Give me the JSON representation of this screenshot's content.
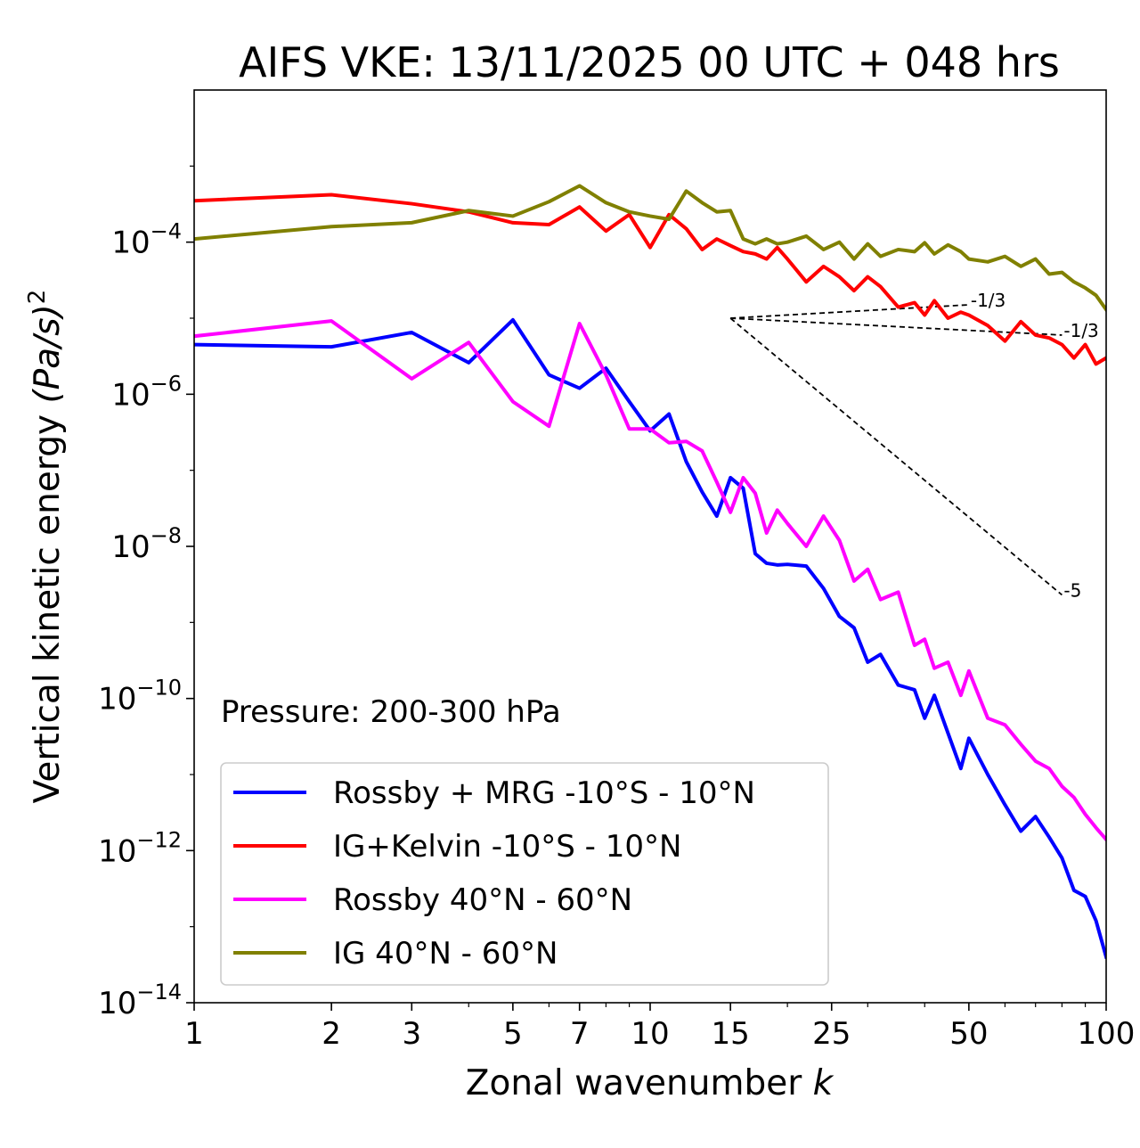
{
  "chart_data": {
    "type": "line",
    "title": "AIFS VKE: 13/11/2025 00 UTC + 048 hrs",
    "xlabel": "Zonal wavenumber",
    "xlabel_var": "k",
    "ylabel": "Vertical kinetic energy",
    "ylabel_units": "(Pa/s)",
    "ylabel_exp": "2",
    "xscale": "log",
    "yscale": "log",
    "xlim": [
      1,
      100
    ],
    "ylim": [
      1e-14,
      0.01
    ],
    "xticks": [
      {
        "value": 1,
        "label": "1"
      },
      {
        "value": 2,
        "label": "2"
      },
      {
        "value": 3,
        "label": "3"
      },
      {
        "value": 5,
        "label": "5"
      },
      {
        "value": 7,
        "label": "7"
      },
      {
        "value": 10,
        "label": "10"
      },
      {
        "value": 15,
        "label": "15"
      },
      {
        "value": 25,
        "label": "25"
      },
      {
        "value": 50,
        "label": "50"
      },
      {
        "value": 100,
        "label": "100"
      }
    ],
    "yticks": [
      {
        "value": 1e-14,
        "mant": "10",
        "exp": "−14"
      },
      {
        "value": 1e-12,
        "mant": "10",
        "exp": "−12"
      },
      {
        "value": 1e-10,
        "mant": "10",
        "exp": "−10"
      },
      {
        "value": 1e-08,
        "mant": "10",
        "exp": "−8"
      },
      {
        "value": 1e-06,
        "mant": "10",
        "exp": "−6"
      },
      {
        "value": 0.0001,
        "mant": "10",
        "exp": "−4"
      }
    ],
    "annotation": "Pressure: 200-300 hPa",
    "legend_position": "lower-left",
    "series": [
      {
        "name": "Rossby + MRG -10°S - 10°N",
        "color": "#0000ff",
        "x": [
          1,
          2,
          3,
          4,
          5,
          6,
          7,
          8,
          9,
          10,
          11,
          12,
          13,
          14,
          15,
          16,
          17,
          18,
          19,
          20,
          22,
          24,
          26,
          28,
          30,
          32,
          35,
          38,
          40,
          42,
          45,
          48,
          50,
          55,
          60,
          65,
          70,
          75,
          80,
          85,
          90,
          95,
          100
        ],
        "y": [
          4.5e-06,
          4.2e-06,
          6.5e-06,
          2.6e-06,
          9.5e-06,
          1.8e-06,
          1.2e-06,
          2.2e-06,
          8e-07,
          3.3e-07,
          5.5e-07,
          1.3e-07,
          5.2e-08,
          2.5e-08,
          8e-08,
          5.8e-08,
          8e-09,
          6e-09,
          5.7e-09,
          5.8e-09,
          5.5e-09,
          2.8e-09,
          1.2e-09,
          8.5e-10,
          3e-10,
          3.8e-10,
          1.5e-10,
          1.3e-10,
          5.5e-11,
          1.1e-10,
          3.5e-11,
          1.2e-11,
          3e-11,
          1e-11,
          4e-12,
          1.8e-12,
          2.8e-12,
          1.5e-12,
          8e-13,
          3e-13,
          2.5e-13,
          1.2e-13,
          4e-14
        ]
      },
      {
        "name": "IG+Kelvin -10°S - 10°N",
        "color": "#ff0000",
        "x": [
          1,
          2,
          3,
          4,
          5,
          6,
          7,
          8,
          9,
          10,
          11,
          12,
          13,
          14,
          15,
          16,
          17,
          18,
          19,
          20,
          22,
          24,
          26,
          28,
          30,
          32,
          35,
          38,
          40,
          42,
          45,
          48,
          50,
          55,
          60,
          65,
          70,
          75,
          80,
          85,
          90,
          95,
          100
        ],
        "y": [
          0.00035,
          0.00042,
          0.00032,
          0.00025,
          0.00018,
          0.00017,
          0.00029,
          0.00014,
          0.00023,
          8.5e-05,
          0.00023,
          0.00015,
          8e-05,
          0.00011,
          9e-05,
          7.5e-05,
          7e-05,
          6e-05,
          8.5e-05,
          6e-05,
          3e-05,
          4.8e-05,
          3.5e-05,
          2.3e-05,
          3.5e-05,
          2.6e-05,
          1.4e-05,
          1.6e-05,
          1.1e-05,
          1.7e-05,
          1e-05,
          1.2e-05,
          1.1e-05,
          8e-06,
          5e-06,
          9e-06,
          6e-06,
          5.5e-06,
          4.5e-06,
          3e-06,
          4.5e-06,
          2.5e-06,
          3e-06
        ]
      },
      {
        "name": "Rossby 40°N - 60°N",
        "color": "#ff00ff",
        "x": [
          1,
          2,
          3,
          4,
          5,
          6,
          7,
          8,
          9,
          10,
          11,
          12,
          13,
          14,
          15,
          16,
          17,
          18,
          19,
          20,
          22,
          24,
          26,
          28,
          30,
          32,
          35,
          38,
          40,
          42,
          45,
          48,
          50,
          55,
          60,
          65,
          70,
          75,
          80,
          85,
          90,
          95,
          100
        ],
        "y": [
          5.8e-06,
          9.2e-06,
          1.6e-06,
          4.8e-06,
          8e-07,
          3.8e-07,
          8.5e-06,
          1.8e-06,
          3.5e-07,
          3.5e-07,
          2.3e-07,
          2.4e-07,
          1.8e-07,
          7e-08,
          2.8e-08,
          8e-08,
          5e-08,
          1.5e-08,
          3e-08,
          2e-08,
          1e-08,
          2.5e-08,
          1.2e-08,
          3.5e-09,
          5e-09,
          2e-09,
          2.5e-09,
          5e-10,
          6e-10,
          2.5e-10,
          3e-10,
          1.1e-10,
          2.3e-10,
          5.5e-11,
          4.5e-11,
          2.5e-11,
          1.5e-11,
          1.2e-11,
          7e-12,
          5e-12,
          3e-12,
          2e-12,
          1.4e-12
        ]
      },
      {
        "name": "IG 40°N - 60°N",
        "color": "#808000",
        "x": [
          1,
          2,
          3,
          4,
          5,
          6,
          7,
          8,
          9,
          10,
          11,
          12,
          13,
          14,
          15,
          16,
          17,
          18,
          19,
          20,
          22,
          24,
          26,
          28,
          30,
          32,
          35,
          38,
          40,
          42,
          45,
          48,
          50,
          55,
          60,
          65,
          70,
          75,
          80,
          85,
          90,
          95,
          100
        ],
        "y": [
          0.00011,
          0.00016,
          0.00018,
          0.00026,
          0.00022,
          0.00034,
          0.00055,
          0.00033,
          0.00025,
          0.00022,
          0.0002,
          0.00047,
          0.00033,
          0.00025,
          0.00026,
          0.00011,
          9.5e-05,
          0.00011,
          9.5e-05,
          0.0001,
          0.00012,
          8e-05,
          0.0001,
          6e-05,
          9.5e-05,
          6.5e-05,
          8e-05,
          7.5e-05,
          9.8e-05,
          7e-05,
          9.2e-05,
          7.5e-05,
          6e-05,
          5.5e-05,
          6.5e-05,
          4.8e-05,
          6e-05,
          3.8e-05,
          4e-05,
          3e-05,
          2.5e-05,
          2e-05,
          1.3e-05
        ]
      }
    ],
    "reference_slopes": [
      {
        "label": "-1/3",
        "x": [
          15,
          50
        ],
        "y": [
          1e-05,
          1.5e-05
        ]
      },
      {
        "label": "-1/3",
        "x": [
          15,
          80
        ],
        "y": [
          1e-05,
          6e-06
        ]
      },
      {
        "label": "-5",
        "x": [
          15,
          80
        ],
        "y": [
          1e-05,
          2.3e-09
        ]
      }
    ]
  }
}
